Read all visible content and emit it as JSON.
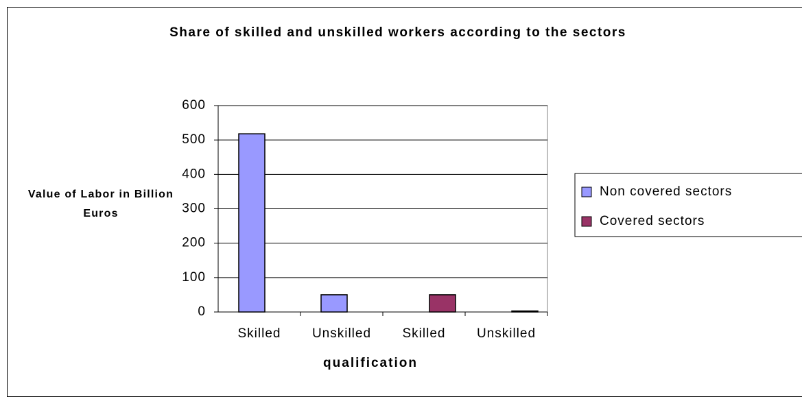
{
  "chart_data": {
    "type": "bar",
    "title": "Share of skilled and unskilled workers according to the sectors",
    "x_label": "qualification",
    "y_label": "Value of Labor in Billion Euros",
    "categories": [
      "Skilled",
      "Unskilled",
      "Skilled",
      "Unskilled"
    ],
    "series": [
      {
        "name": "Non covered sectors",
        "color": "#9999ff",
        "values": [
          518,
          50,
          null,
          null
        ]
      },
      {
        "name": "Covered sectors",
        "color": "#993366",
        "values": [
          null,
          null,
          50,
          3
        ]
      }
    ],
    "ylim": [
      0,
      600
    ],
    "yticks": [
      0,
      100,
      200,
      300,
      400,
      500,
      600
    ],
    "grid": true,
    "legend": "right"
  }
}
